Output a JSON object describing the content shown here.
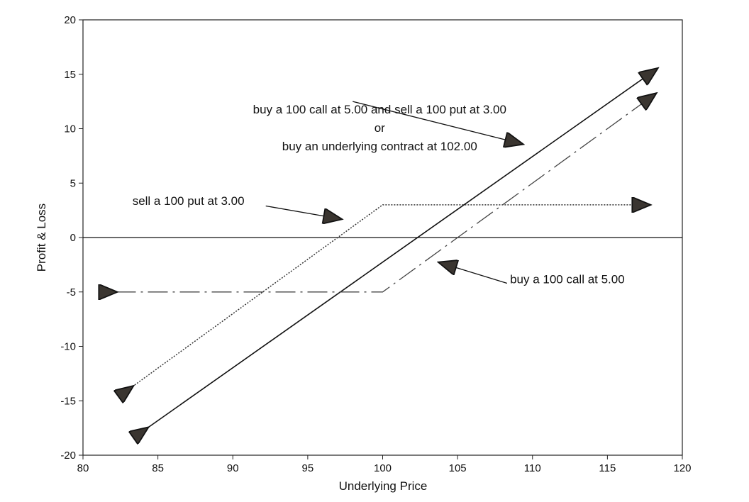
{
  "chart_data": {
    "type": "line",
    "title": "",
    "xlabel": "Underlying Price",
    "ylabel": "Profit & Loss",
    "xlim": [
      80,
      120
    ],
    "ylim": [
      -20,
      20
    ],
    "x_ticks": [
      80,
      85,
      90,
      95,
      100,
      105,
      110,
      115,
      120
    ],
    "y_ticks": [
      20,
      15,
      10,
      5,
      0,
      -5,
      -10,
      -15,
      -20
    ],
    "x_tick_labels": [
      "80",
      "85",
      "90",
      "95",
      "100",
      "105",
      "110",
      "115",
      "120"
    ],
    "y_tick_labels": [
      "20",
      "15",
      "10",
      "5",
      "0",
      "-5",
      "-10",
      "-15",
      "-20"
    ],
    "grid": false,
    "series": [
      {
        "name": "",
        "style": "solid",
        "points": [
          [
            84.3,
            -17.5
          ],
          [
            118.3,
            15.5
          ]
        ]
      },
      {
        "name": "",
        "style": "dotted",
        "points": [
          [
            83.3,
            -13.7
          ],
          [
            100,
            3
          ],
          [
            117.8,
            3
          ]
        ]
      },
      {
        "name": "",
        "style": "dashed",
        "points": [
          [
            82.2,
            -5
          ],
          [
            100,
            -5
          ],
          [
            118.2,
            13.2
          ]
        ]
      }
    ],
    "reference_lines": [
      {
        "y": 0
      }
    ],
    "annotations": [
      {
        "id": "combo",
        "lines": [
          "buy a 100 call at 5.00 and sell a 100 put at 3.00",
          "or",
          "buy an underlying contract at 102.00"
        ],
        "text_xy": [
          99.8,
          11.4
        ],
        "arrow_from": [
          98,
          12.5
        ],
        "arrow_to": [
          109.3,
          8.6
        ]
      },
      {
        "id": "put",
        "lines": [
          "sell a 100 put at 3.00"
        ],
        "text_xy": [
          83.3,
          3
        ],
        "arrow_from": [
          92.2,
          2.9
        ],
        "arrow_to": [
          97.2,
          1.7
        ]
      },
      {
        "id": "call",
        "lines": [
          "buy a 100 call at 5.00"
        ],
        "text_xy": [
          108.5,
          -4.2
        ],
        "arrow_from": [
          108.3,
          -4.2
        ],
        "arrow_to": [
          103.8,
          -2.3
        ]
      }
    ]
  }
}
